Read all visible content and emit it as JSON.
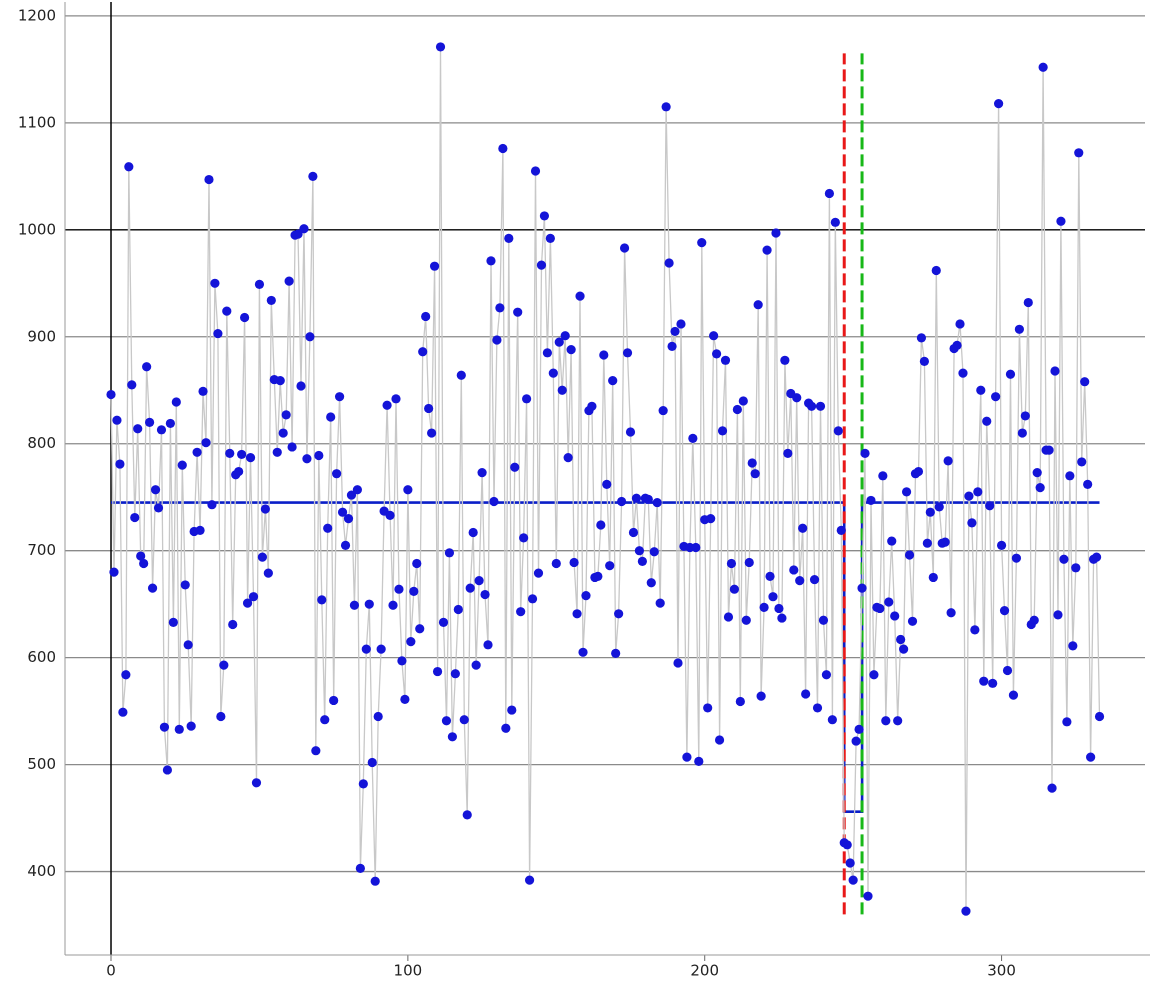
{
  "chart_data": {
    "type": "line",
    "xlim": [
      -15.5,
      350
    ],
    "ylim": [
      322,
      1213
    ],
    "xticks": [
      0,
      100,
      200,
      300
    ],
    "yticks": [
      400,
      500,
      600,
      700,
      800,
      900,
      1000,
      1100,
      1200
    ],
    "grid": true,
    "axis_lines": {
      "x": 0,
      "y": 1000
    },
    "series": [
      {
        "color": "#1414d8",
        "line_color": "#c8c8c8",
        "markers": true,
        "x": [
          0,
          1,
          2,
          3,
          4,
          5,
          6,
          7,
          8,
          9,
          10,
          11,
          12,
          13,
          14,
          15,
          16,
          17,
          18,
          19,
          20,
          21,
          22,
          23,
          24,
          25,
          26,
          27,
          28,
          29,
          30,
          31,
          32,
          33,
          34,
          35,
          36,
          37,
          38,
          39,
          40,
          41,
          42,
          43,
          44,
          45,
          46,
          47,
          48,
          49,
          50,
          51,
          52,
          53,
          54,
          55,
          56,
          57,
          58,
          59,
          60,
          61,
          62,
          63,
          64,
          65,
          66,
          67,
          68,
          69,
          70,
          71,
          72,
          73,
          74,
          75,
          76,
          77,
          78,
          79,
          80,
          81,
          82,
          83,
          84,
          85,
          86,
          87,
          88,
          89,
          90,
          91,
          92,
          93,
          94,
          95,
          96,
          97,
          98,
          99,
          100,
          101,
          102,
          103,
          104,
          105,
          106,
          107,
          108,
          109,
          110,
          111,
          112,
          113,
          114,
          115,
          116,
          117,
          118,
          119,
          120,
          121,
          122,
          123,
          124,
          125,
          126,
          127,
          128,
          129,
          130,
          131,
          132,
          133,
          134,
          135,
          136,
          137,
          138,
          139,
          140,
          141,
          142,
          143,
          144,
          145,
          146,
          147,
          148,
          149,
          150,
          151,
          152,
          153,
          154,
          155,
          156,
          157,
          158,
          159,
          160,
          161,
          162,
          163,
          164,
          165,
          166,
          167,
          168,
          169,
          170,
          171,
          172,
          173,
          174,
          175,
          176,
          177,
          178,
          179,
          180,
          181,
          182,
          183,
          184,
          185,
          186,
          187,
          188,
          189,
          190,
          191,
          192,
          193,
          194,
          195,
          196,
          197,
          198,
          199,
          200,
          201,
          202,
          203,
          204,
          205,
          206,
          207,
          208,
          209,
          210,
          211,
          212,
          213,
          214,
          215,
          216,
          217,
          218,
          219,
          220,
          221,
          222,
          223,
          224,
          225,
          226,
          227,
          228,
          229,
          230,
          231,
          232,
          233,
          234,
          235,
          236,
          237,
          238,
          239,
          240,
          241,
          242,
          243,
          244,
          245,
          246,
          247,
          248,
          249,
          250,
          251,
          252,
          253,
          254,
          255,
          256,
          257,
          258,
          259,
          260,
          261,
          262,
          263,
          264,
          265,
          266,
          267,
          268,
          269,
          270,
          271,
          272,
          273,
          274,
          275,
          276,
          277,
          278,
          279,
          280,
          281,
          282,
          283,
          284,
          285,
          286,
          287,
          288,
          289,
          290,
          291,
          292,
          293,
          294,
          295,
          296,
          297,
          298,
          299,
          300,
          301,
          302,
          303,
          304,
          305,
          306,
          307,
          308,
          309,
          310,
          311,
          312,
          313,
          314,
          315,
          316,
          317,
          318,
          319,
          320,
          321,
          322,
          323,
          324,
          325,
          326,
          327,
          328,
          329,
          330,
          331,
          332,
          333
        ],
        "values": [
          846,
          680,
          822,
          781,
          549,
          584,
          1059,
          855,
          731,
          814,
          695,
          688,
          872,
          820,
          665,
          757,
          740,
          813,
          535,
          495,
          819,
          633,
          839,
          533,
          780,
          668,
          612,
          536,
          718,
          792,
          719,
          849,
          801,
          1047,
          743,
          950,
          903,
          545,
          593,
          924,
          791,
          631,
          771,
          774,
          790,
          918,
          651,
          787,
          657,
          483,
          949,
          694,
          739,
          679,
          934,
          860,
          792,
          859,
          810,
          827,
          952,
          797,
          995,
          996,
          854,
          1001,
          786,
          900,
          1050,
          513,
          789,
          654,
          542,
          721,
          825,
          560,
          772,
          844,
          736,
          705,
          730,
          752,
          649,
          757,
          403,
          482,
          608,
          650,
          502,
          391,
          545,
          608,
          737,
          836,
          733,
          649,
          842,
          664,
          597,
          561,
          757,
          615,
          662,
          688,
          627,
          886,
          919,
          833,
          810,
          966,
          587,
          1171,
          633,
          541,
          698,
          526,
          585,
          645,
          864,
          542,
          453,
          665,
          717,
          593,
          672,
          773,
          659,
          612,
          971,
          746,
          897,
          927,
          1076,
          534,
          992,
          551,
          778,
          923,
          643,
          712,
          842,
          392,
          655,
          1055,
          679,
          967,
          1013,
          885,
          992,
          866,
          688,
          895,
          850,
          901,
          787,
          888,
          689,
          641,
          938,
          605,
          658,
          831,
          835,
          675,
          676,
          724,
          883,
          762,
          686,
          859,
          604,
          641,
          746,
          983,
          885,
          811,
          717,
          749,
          700,
          690,
          749,
          748,
          670,
          699,
          745,
          651,
          831,
          1115,
          969,
          891,
          905,
          595,
          912,
          704,
          507,
          703,
          805,
          703,
          503,
          988,
          729,
          553,
          730,
          901,
          884,
          523,
          812,
          878,
          638,
          688,
          664,
          832,
          559,
          840,
          635,
          689,
          782,
          772,
          930,
          564,
          647,
          981,
          676,
          657,
          997,
          646,
          637,
          878,
          791,
          847,
          682,
          843,
          672,
          721,
          566,
          838,
          835,
          673,
          553,
          835,
          635,
          584,
          1034,
          542,
          1007,
          812,
          719,
          427,
          425,
          408,
          392,
          522,
          533,
          665,
          791,
          377,
          747,
          584,
          647,
          646,
          770,
          541,
          652,
          709,
          639,
          541,
          617,
          608,
          755,
          696,
          634,
          772,
          774,
          899,
          877,
          707,
          736,
          675,
          962,
          741,
          707,
          708,
          784,
          642,
          889,
          892,
          912,
          866,
          363,
          751,
          726,
          626,
          755,
          850,
          578,
          821,
          742,
          576,
          844,
          1118,
          705,
          644,
          588,
          865,
          565,
          693,
          907,
          810,
          826,
          932,
          631,
          635,
          773,
          759,
          1152,
          794,
          794,
          478,
          868,
          640,
          1008,
          692,
          540,
          770,
          611,
          684,
          1072,
          783,
          858,
          762,
          507,
          692,
          694,
          545
        ]
      },
      {
        "color": "#0a1ec8",
        "line_color": "#0a1ec8",
        "markers": false,
        "x": [
          0,
          247,
          247,
          253,
          253,
          333
        ],
        "values": [
          745,
          745,
          456,
          456,
          745,
          745
        ]
      }
    ],
    "vlines": [
      {
        "x": 247,
        "color": "#e81818",
        "y_range": [
          360,
          1165
        ]
      },
      {
        "x": 253,
        "color": "#18b818",
        "y_range": [
          360,
          1165
        ]
      }
    ]
  }
}
